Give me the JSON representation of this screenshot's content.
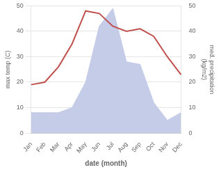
{
  "chart_data": {
    "type": "line",
    "xlabel": "date (month)",
    "ylabel": "max temp (C)",
    "y2label": "med. precipitation\n(kg/m2)",
    "categories": [
      "Jan",
      "Feb",
      "Mar",
      "Apr",
      "May",
      "Jun",
      "Jul",
      "Aug",
      "Sep",
      "Oct",
      "Nov",
      "Dec"
    ],
    "series": [
      {
        "type": "area",
        "color": "#c5cce8",
        "axis": "y2",
        "values": [
          8,
          8,
          8,
          10,
          20,
          42,
          49,
          28,
          27,
          12,
          5,
          8
        ]
      },
      {
        "type": "line",
        "color": "#c0504d",
        "values": [
          19,
          20,
          26,
          35,
          48,
          47,
          42,
          40,
          41,
          38,
          30,
          23
        ]
      }
    ],
    "ylim": [
      0,
      50
    ],
    "yticks": [
      0,
      10,
      20,
      30,
      40,
      50
    ],
    "y2lim": [
      0,
      50
    ],
    "y2ticks": [
      0,
      10,
      20,
      30,
      40,
      50
    ],
    "grid": true
  }
}
